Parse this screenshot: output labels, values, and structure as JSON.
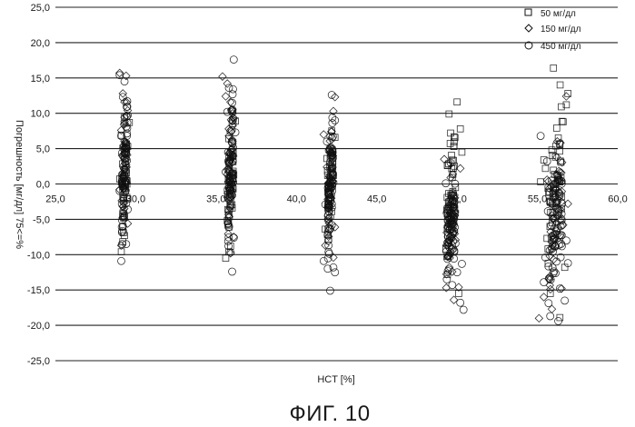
{
  "chart_data": {
    "type": "scatter",
    "title": "",
    "xlabel": "HCT [%]",
    "ylabel": "Погрешность [мг/дл] 75<=%",
    "xlim": [
      25.0,
      60.0
    ],
    "ylim": [
      -25.0,
      25.0
    ],
    "x_ticks": [
      "25,0",
      "30,0",
      "35,0",
      "40,0",
      "45,0",
      "50,0",
      "55,0",
      "60,0"
    ],
    "y_ticks": [
      "25,0",
      "20,0",
      "15,0",
      "10,0",
      "5,0",
      "0,0",
      "-5,0",
      "-10,0",
      "-15,0",
      "-20,0",
      "-25,0"
    ],
    "grid": "horizontal",
    "legend_position": "top-right",
    "series": [
      {
        "name": "50 мг/дл",
        "marker": "square",
        "color": "#111111",
        "groups": [
          {
            "hct": 29.3,
            "points": [
              [
                29.1,
                -9.6
              ],
              [
                29.3,
                -7.3
              ],
              [
                29.2,
                -4.2
              ],
              [
                29.5,
                -2.1
              ],
              [
                29.0,
                0.7
              ],
              [
                29.4,
                2.0
              ],
              [
                29.3,
                4.6
              ],
              [
                29.1,
                6.9
              ],
              [
                29.6,
                8.7
              ],
              [
                29.2,
                -6.0
              ],
              [
                29.5,
                5.3
              ],
              [
                29.3,
                9.4
              ]
            ]
          },
          {
            "hct": 35.9,
            "points": [
              [
                35.6,
                -10.5
              ],
              [
                35.9,
                -8.8
              ],
              [
                35.8,
                -6.1
              ],
              [
                36.0,
                -3.4
              ],
              [
                35.7,
                -1.0
              ],
              [
                36.1,
                1.3
              ],
              [
                35.9,
                3.7
              ],
              [
                35.8,
                6.4
              ],
              [
                36.2,
                8.9
              ],
              [
                35.7,
                -5.2
              ],
              [
                36.0,
                4.8
              ],
              [
                35.8,
                -9.6
              ]
            ]
          },
          {
            "hct": 42.1,
            "points": [
              [
                41.8,
                -6.4
              ],
              [
                42.2,
                -3.9
              ],
              [
                42.0,
                -1.5
              ],
              [
                42.3,
                1.2
              ],
              [
                41.9,
                3.6
              ],
              [
                42.1,
                5.0
              ],
              [
                42.4,
                6.6
              ],
              [
                42.0,
                -7.8
              ],
              [
                42.2,
                7.5
              ]
            ]
          },
          {
            "hct": 49.6,
            "points": [
              [
                49.3,
                -9.2
              ],
              [
                49.7,
                -6.4
              ],
              [
                49.5,
                -3.2
              ],
              [
                49.9,
                -0.5
              ],
              [
                49.4,
                2.6
              ],
              [
                49.8,
                5.3
              ],
              [
                49.6,
                7.2
              ],
              [
                49.5,
                9.9
              ],
              [
                50.0,
                11.6
              ],
              [
                50.2,
                7.8
              ],
              [
                50.3,
                4.5
              ],
              [
                49.4,
                -12.8
              ],
              [
                50.1,
                -15.5
              ]
            ]
          },
          {
            "hct": 56.1,
            "points": [
              [
                55.2,
                0.3
              ],
              [
                55.5,
                2.2
              ],
              [
                55.9,
                4.8
              ],
              [
                56.3,
                6.5
              ],
              [
                56.6,
                8.8
              ],
              [
                56.8,
                11.2
              ],
              [
                56.9,
                12.8
              ],
              [
                56.0,
                16.4
              ],
              [
                55.4,
                3.4
              ],
              [
                56.2,
                7.9
              ],
              [
                55.7,
                -1.2
              ],
              [
                56.5,
                -3.5
              ],
              [
                55.6,
                -7.7
              ],
              [
                56.7,
                -11.8
              ],
              [
                55.8,
                -15.5
              ],
              [
                56.4,
                -18.9
              ]
            ]
          }
        ]
      },
      {
        "name": "150 мг/дл",
        "marker": "diamond",
        "color": "#111111",
        "groups": [
          {
            "hct": 29.3,
            "points": [
              [
                29.0,
                15.7
              ],
              [
                29.4,
                15.3
              ],
              [
                29.2,
                12.8
              ],
              [
                29.5,
                10.4
              ],
              [
                29.1,
                7.6
              ],
              [
                29.3,
                5.1
              ],
              [
                29.4,
                2.7
              ],
              [
                29.0,
                -0.8
              ],
              [
                29.2,
                -3.2
              ],
              [
                29.5,
                -5.6
              ],
              [
                29.1,
                -8.7
              ],
              [
                29.3,
                11.6
              ]
            ]
          },
          {
            "hct": 35.9,
            "points": [
              [
                35.4,
                15.2
              ],
              [
                35.7,
                14.2
              ],
              [
                35.9,
                11.6
              ],
              [
                36.1,
                9.3
              ],
              [
                35.8,
                6.8
              ],
              [
                35.9,
                4.2
              ],
              [
                36.0,
                1.6
              ],
              [
                35.7,
                -1.9
              ],
              [
                35.8,
                -4.6
              ],
              [
                36.1,
                -7.5
              ],
              [
                35.9,
                -9.8
              ],
              [
                35.6,
                12.4
              ]
            ]
          },
          {
            "hct": 42.1,
            "points": [
              [
                41.7,
                7.0
              ],
              [
                42.1,
                5.2
              ],
              [
                42.4,
                12.3
              ],
              [
                42.3,
                10.3
              ],
              [
                41.9,
                2.4
              ],
              [
                42.2,
                -0.6
              ],
              [
                42.0,
                -3.5
              ],
              [
                42.4,
                -6.1
              ],
              [
                41.8,
                -8.7
              ],
              [
                42.3,
                -10.4
              ]
            ]
          },
          {
            "hct": 49.6,
            "points": [
              [
                49.2,
                3.5
              ],
              [
                49.6,
                0.9
              ],
              [
                49.8,
                -2.3
              ],
              [
                49.5,
                -5.0
              ],
              [
                49.9,
                -7.9
              ],
              [
                49.4,
                -10.3
              ],
              [
                49.7,
                -12.4
              ],
              [
                50.1,
                -14.6
              ],
              [
                49.8,
                -16.4
              ],
              [
                50.2,
                2.2
              ]
            ]
          },
          {
            "hct": 56.1,
            "points": [
              [
                55.1,
                -19.0
              ],
              [
                55.4,
                -16.0
              ],
              [
                55.7,
                -13.4
              ],
              [
                56.0,
                -10.7
              ],
              [
                56.3,
                -8.1
              ],
              [
                56.6,
                -5.8
              ],
              [
                56.9,
                -2.8
              ],
              [
                55.6,
                0.6
              ],
              [
                56.2,
                3.8
              ],
              [
                56.8,
                12.4
              ],
              [
                55.9,
                -17.7
              ],
              [
                56.5,
                -14.8
              ]
            ]
          }
        ]
      },
      {
        "name": "450 мг/дл",
        "marker": "circle",
        "color": "#111111",
        "groups": [
          {
            "hct": 29.3,
            "points": [
              [
                29.1,
                -10.9
              ],
              [
                29.4,
                -8.5
              ],
              [
                29.2,
                -6.0
              ],
              [
                29.5,
                -3.6
              ],
              [
                29.0,
                -1.0
              ],
              [
                29.3,
                1.7
              ],
              [
                29.4,
                4.3
              ],
              [
                29.1,
                6.8
              ],
              [
                29.5,
                9.7
              ],
              [
                29.2,
                12.3
              ],
              [
                29.3,
                14.5
              ],
              [
                29.0,
                15.4
              ]
            ]
          },
          {
            "hct": 35.9,
            "points": [
              [
                36.1,
                17.6
              ],
              [
                35.8,
                13.6
              ],
              [
                35.7,
                10.2
              ],
              [
                36.2,
                7.3
              ],
              [
                35.9,
                4.5
              ],
              [
                35.6,
                1.7
              ],
              [
                36.0,
                -1.6
              ],
              [
                35.8,
                -4.8
              ],
              [
                36.1,
                -7.6
              ],
              [
                35.9,
                -9.7
              ],
              [
                36.0,
                -12.4
              ]
            ]
          },
          {
            "hct": 42.1,
            "points": [
              [
                42.2,
                12.6
              ],
              [
                42.4,
                9.0
              ],
              [
                41.9,
                6.0
              ],
              [
                42.1,
                3.1
              ],
              [
                42.3,
                0.2
              ],
              [
                41.8,
                -2.9
              ],
              [
                42.2,
                -5.8
              ],
              [
                42.0,
                -8.7
              ],
              [
                41.7,
                -10.9
              ],
              [
                42.4,
                -12.5
              ],
              [
                42.1,
                -15.1
              ],
              [
                42.3,
                -11.8
              ]
            ]
          },
          {
            "hct": 49.6,
            "points": [
              [
                49.6,
                3.0
              ],
              [
                49.3,
                0.1
              ],
              [
                49.8,
                -2.8
              ],
              [
                49.5,
                -5.7
              ],
              [
                49.9,
                -8.4
              ],
              [
                49.4,
                -10.6
              ],
              [
                50.0,
                -12.5
              ],
              [
                49.7,
                -14.3
              ],
              [
                50.2,
                -16.8
              ],
              [
                50.4,
                -17.8
              ],
              [
                49.8,
                -6.7
              ],
              [
                50.3,
                -11.3
              ]
            ]
          },
          {
            "hct": 56.1,
            "points": [
              [
                55.2,
                6.8
              ],
              [
                55.6,
                3.2
              ],
              [
                55.9,
                0.5
              ],
              [
                56.2,
                -2.6
              ],
              [
                56.5,
                -5.2
              ],
              [
                56.8,
                -8.0
              ],
              [
                55.5,
                -10.4
              ],
              [
                56.0,
                -12.6
              ],
              [
                56.4,
                -14.8
              ],
              [
                56.7,
                -16.5
              ],
              [
                55.8,
                -18.7
              ],
              [
                56.3,
                -19.4
              ],
              [
                56.9,
                -11.2
              ],
              [
                55.4,
                -13.9
              ]
            ]
          }
        ]
      }
    ],
    "caption": "ФИГ. 10"
  }
}
